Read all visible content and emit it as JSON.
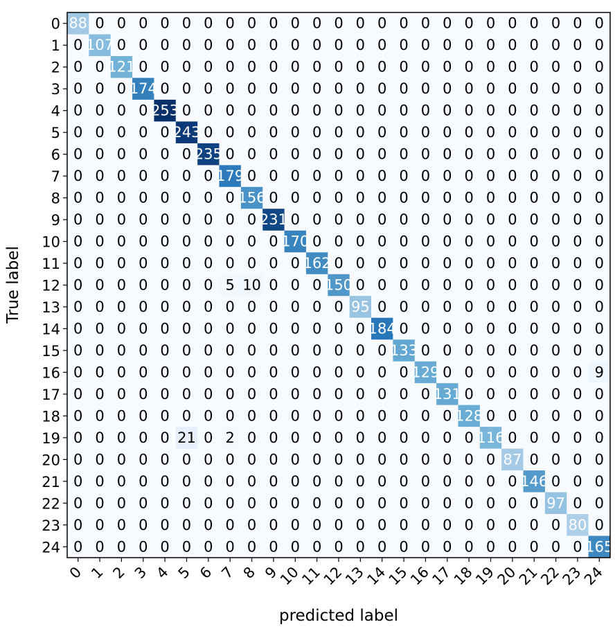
{
  "chart_data": {
    "type": "heatmap",
    "title": "",
    "xlabel": "predicted label",
    "ylabel": "True label",
    "x_tick_labels": [
      "0",
      "1",
      "2",
      "3",
      "4",
      "5",
      "6",
      "7",
      "8",
      "9",
      "10",
      "11",
      "12",
      "13",
      "14",
      "15",
      "16",
      "17",
      "18",
      "19",
      "20",
      "21",
      "22",
      "23",
      "24"
    ],
    "y_tick_labels": [
      "0",
      "1",
      "2",
      "3",
      "4",
      "5",
      "6",
      "7",
      "8",
      "9",
      "10",
      "11",
      "12",
      "13",
      "14",
      "15",
      "16",
      "17",
      "18",
      "19",
      "20",
      "21",
      "22",
      "23",
      "24"
    ],
    "colormap": [
      "#f7fbff",
      "#c6dbef",
      "#6baed6",
      "#2171b5",
      "#08306b"
    ],
    "vmin": 0,
    "vmax": 253,
    "grid": false,
    "legend": "none",
    "matrix": [
      [
        88,
        0,
        0,
        0,
        0,
        0,
        0,
        0,
        0,
        0,
        0,
        0,
        0,
        0,
        0,
        0,
        0,
        0,
        0,
        0,
        0,
        0,
        0,
        0,
        0
      ],
      [
        0,
        107,
        0,
        0,
        0,
        0,
        0,
        0,
        0,
        0,
        0,
        0,
        0,
        0,
        0,
        0,
        0,
        0,
        0,
        0,
        0,
        0,
        0,
        0,
        0
      ],
      [
        0,
        0,
        121,
        0,
        0,
        0,
        0,
        0,
        0,
        0,
        0,
        0,
        0,
        0,
        0,
        0,
        0,
        0,
        0,
        0,
        0,
        0,
        0,
        0,
        0
      ],
      [
        0,
        0,
        0,
        174,
        0,
        0,
        0,
        0,
        0,
        0,
        0,
        0,
        0,
        0,
        0,
        0,
        0,
        0,
        0,
        0,
        0,
        0,
        0,
        0,
        0
      ],
      [
        0,
        0,
        0,
        0,
        253,
        0,
        0,
        0,
        0,
        0,
        0,
        0,
        0,
        0,
        0,
        0,
        0,
        0,
        0,
        0,
        0,
        0,
        0,
        0,
        0
      ],
      [
        0,
        0,
        0,
        0,
        0,
        243,
        0,
        0,
        0,
        0,
        0,
        0,
        0,
        0,
        0,
        0,
        0,
        0,
        0,
        0,
        0,
        0,
        0,
        0,
        0
      ],
      [
        0,
        0,
        0,
        0,
        0,
        0,
        235,
        0,
        0,
        0,
        0,
        0,
        0,
        0,
        0,
        0,
        0,
        0,
        0,
        0,
        0,
        0,
        0,
        0,
        0
      ],
      [
        0,
        0,
        0,
        0,
        0,
        0,
        0,
        179,
        0,
        0,
        0,
        0,
        0,
        0,
        0,
        0,
        0,
        0,
        0,
        0,
        0,
        0,
        0,
        0,
        0
      ],
      [
        0,
        0,
        0,
        0,
        0,
        0,
        0,
        0,
        156,
        0,
        0,
        0,
        0,
        0,
        0,
        0,
        0,
        0,
        0,
        0,
        0,
        0,
        0,
        0,
        0
      ],
      [
        0,
        0,
        0,
        0,
        0,
        0,
        0,
        0,
        0,
        231,
        0,
        0,
        0,
        0,
        0,
        0,
        0,
        0,
        0,
        0,
        0,
        0,
        0,
        0,
        0
      ],
      [
        0,
        0,
        0,
        0,
        0,
        0,
        0,
        0,
        0,
        0,
        170,
        0,
        0,
        0,
        0,
        0,
        0,
        0,
        0,
        0,
        0,
        0,
        0,
        0,
        0
      ],
      [
        0,
        0,
        0,
        0,
        0,
        0,
        0,
        0,
        0,
        0,
        0,
        162,
        0,
        0,
        0,
        0,
        0,
        0,
        0,
        0,
        0,
        0,
        0,
        0,
        0
      ],
      [
        0,
        0,
        0,
        0,
        0,
        0,
        0,
        5,
        10,
        0,
        0,
        0,
        150,
        0,
        0,
        0,
        0,
        0,
        0,
        0,
        0,
        0,
        0,
        0,
        0
      ],
      [
        0,
        0,
        0,
        0,
        0,
        0,
        0,
        0,
        0,
        0,
        0,
        0,
        0,
        95,
        0,
        0,
        0,
        0,
        0,
        0,
        0,
        0,
        0,
        0,
        0
      ],
      [
        0,
        0,
        0,
        0,
        0,
        0,
        0,
        0,
        0,
        0,
        0,
        0,
        0,
        0,
        184,
        0,
        0,
        0,
        0,
        0,
        0,
        0,
        0,
        0,
        0
      ],
      [
        0,
        0,
        0,
        0,
        0,
        0,
        0,
        0,
        0,
        0,
        0,
        0,
        0,
        0,
        0,
        133,
        0,
        0,
        0,
        0,
        0,
        0,
        0,
        0,
        0
      ],
      [
        0,
        0,
        0,
        0,
        0,
        0,
        0,
        0,
        0,
        0,
        0,
        0,
        0,
        0,
        0,
        0,
        129,
        0,
        0,
        0,
        0,
        0,
        0,
        0,
        9
      ],
      [
        0,
        0,
        0,
        0,
        0,
        0,
        0,
        0,
        0,
        0,
        0,
        0,
        0,
        0,
        0,
        0,
        0,
        131,
        0,
        0,
        0,
        0,
        0,
        0,
        0
      ],
      [
        0,
        0,
        0,
        0,
        0,
        0,
        0,
        0,
        0,
        0,
        0,
        0,
        0,
        0,
        0,
        0,
        0,
        0,
        128,
        0,
        0,
        0,
        0,
        0,
        0
      ],
      [
        0,
        0,
        0,
        0,
        0,
        21,
        0,
        2,
        0,
        0,
        0,
        0,
        0,
        0,
        0,
        0,
        0,
        0,
        0,
        116,
        0,
        0,
        0,
        0,
        0
      ],
      [
        0,
        0,
        0,
        0,
        0,
        0,
        0,
        0,
        0,
        0,
        0,
        0,
        0,
        0,
        0,
        0,
        0,
        0,
        0,
        0,
        87,
        0,
        0,
        0,
        0
      ],
      [
        0,
        0,
        0,
        0,
        0,
        0,
        0,
        0,
        0,
        0,
        0,
        0,
        0,
        0,
        0,
        0,
        0,
        0,
        0,
        0,
        0,
        146,
        0,
        0,
        0
      ],
      [
        0,
        0,
        0,
        0,
        0,
        0,
        0,
        0,
        0,
        0,
        0,
        0,
        0,
        0,
        0,
        0,
        0,
        0,
        0,
        0,
        0,
        0,
        97,
        0,
        0
      ],
      [
        0,
        0,
        0,
        0,
        0,
        0,
        0,
        0,
        0,
        0,
        0,
        0,
        0,
        0,
        0,
        0,
        0,
        0,
        0,
        0,
        0,
        0,
        0,
        80,
        0
      ],
      [
        0,
        0,
        0,
        0,
        0,
        0,
        0,
        0,
        0,
        0,
        0,
        0,
        0,
        0,
        0,
        0,
        0,
        0,
        0,
        0,
        0,
        0,
        0,
        0,
        165
      ]
    ]
  }
}
